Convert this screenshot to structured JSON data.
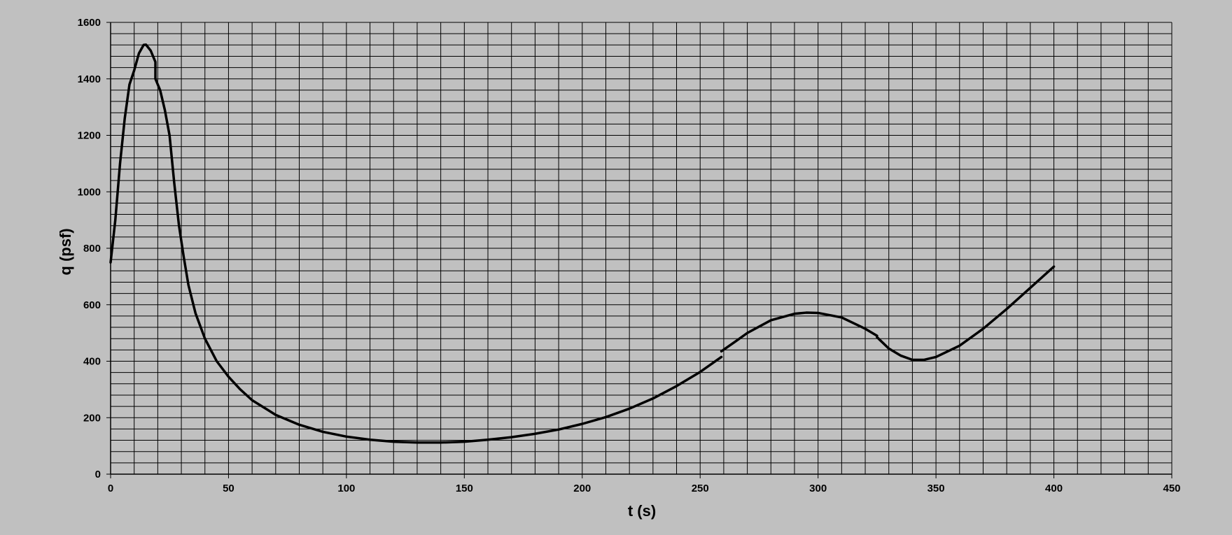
{
  "chart_data": {
    "type": "line",
    "title": "",
    "xlabel": "t (s)",
    "ylabel": "q (psf)",
    "xlim": [
      0,
      450
    ],
    "ylim": [
      0,
      1600
    ],
    "x_ticks": [
      0,
      50,
      100,
      150,
      200,
      250,
      300,
      350,
      400,
      450
    ],
    "y_ticks": [
      0,
      200,
      400,
      600,
      800,
      1000,
      1200,
      1400,
      1600
    ],
    "x_minor_step": 10,
    "y_minor_step": 40,
    "grid": true,
    "legend": "none",
    "colors": {
      "background": "#c0c0c0",
      "grid": "#000000",
      "line": "#000000"
    },
    "series": [
      {
        "segments": [
          [
            [
              0,
              750
            ],
            [
              2,
              900
            ],
            [
              4,
              1100
            ],
            [
              6,
              1260
            ],
            [
              8,
              1380
            ],
            [
              10,
              1430
            ],
            [
              12,
              1490
            ],
            [
              14,
              1520
            ],
            [
              15,
              1521
            ],
            [
              17,
              1500
            ],
            [
              19,
              1460
            ],
            [
              19,
              1400
            ],
            [
              21,
              1360
            ],
            [
              23,
              1290
            ],
            [
              25,
              1200
            ],
            [
              27,
              1030
            ],
            [
              29,
              880
            ],
            [
              31,
              770
            ],
            [
              33,
              670
            ],
            [
              36,
              570
            ],
            [
              40,
              480
            ],
            [
              45,
              400
            ],
            [
              50,
              345
            ],
            [
              55,
              300
            ],
            [
              60,
              262
            ],
            [
              70,
              210
            ],
            [
              80,
              175
            ],
            [
              90,
              150
            ],
            [
              100,
              133
            ],
            [
              110,
              122
            ],
            [
              120,
              115
            ],
            [
              130,
              112
            ],
            [
              140,
              112
            ],
            [
              150,
              115
            ],
            [
              160,
              122
            ],
            [
              170,
              131
            ],
            [
              180,
              143
            ],
            [
              190,
              158
            ],
            [
              200,
              178
            ],
            [
              210,
              202
            ],
            [
              220,
              232
            ],
            [
              230,
              268
            ],
            [
              240,
              312
            ],
            [
              250,
              362
            ],
            [
              259,
              415
            ]
          ],
          [
            [
              259,
              435
            ],
            [
              265,
              470
            ],
            [
              270,
              500
            ],
            [
              280,
              545
            ],
            [
              290,
              568
            ],
            [
              295,
              572
            ],
            [
              300,
              571
            ],
            [
              310,
              555
            ],
            [
              320,
              515
            ],
            [
              325,
              490
            ]
          ],
          [
            [
              325,
              485
            ],
            [
              330,
              445
            ],
            [
              335,
              420
            ],
            [
              340,
              405
            ],
            [
              345,
              405
            ],
            [
              350,
              415
            ],
            [
              360,
              455
            ],
            [
              370,
              515
            ],
            [
              380,
              585
            ],
            [
              390,
              660
            ],
            [
              400,
              735
            ]
          ]
        ]
      }
    ]
  }
}
